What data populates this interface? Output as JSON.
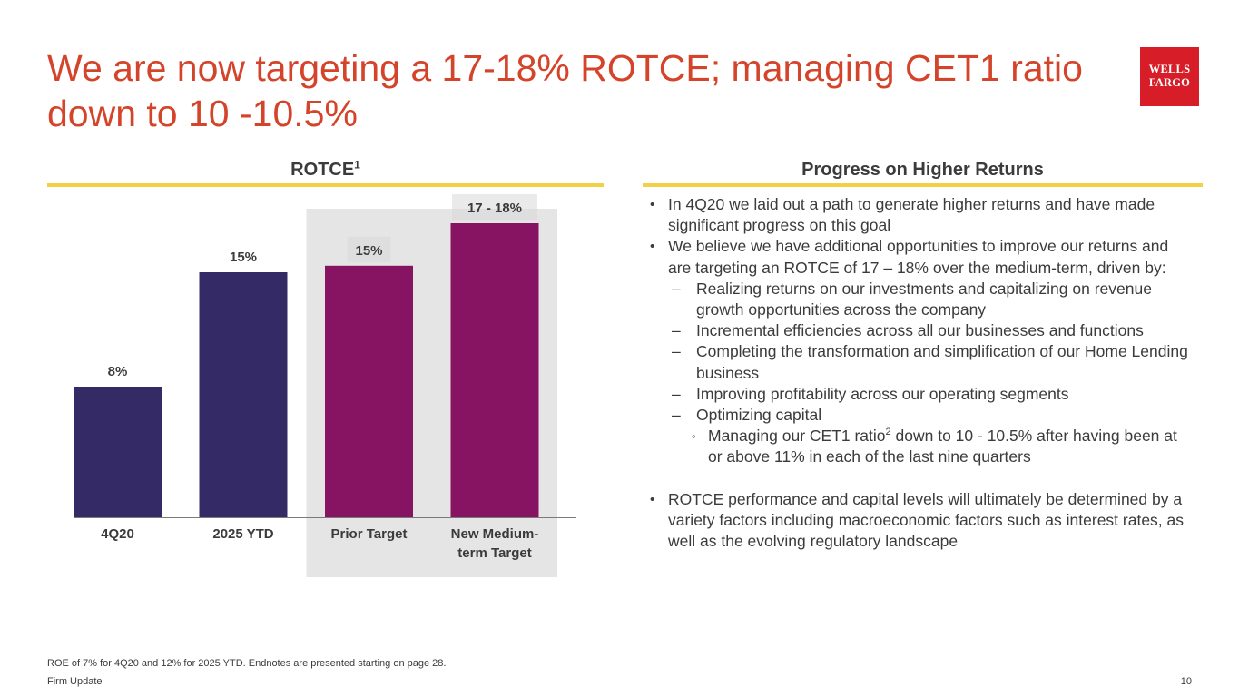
{
  "slide": {
    "title": "We are now targeting a 17-18% ROTCE; managing CET1 ratio down to 10 -10.5%",
    "logo_line1": "WELLS",
    "logo_line2": "FARGO",
    "footnote": "ROE of 7% for 4Q20 and 12% for 2025 YTD. Endnotes are presented starting on page 28.",
    "footer_left": "Firm Update",
    "page_number": "10"
  },
  "left_section": {
    "heading": "ROTCE",
    "heading_sup": "1"
  },
  "right_section": {
    "heading": "Progress on Higher Returns",
    "bullets": [
      {
        "level": 1,
        "marker": "•",
        "text": "In 4Q20 we laid out a path to generate higher returns and have made significant progress on this goal"
      },
      {
        "level": 1,
        "marker": "•",
        "text": "We believe we have additional opportunities to improve our returns and are targeting an ROTCE of 17 – 18% over the medium-term, driven by:"
      },
      {
        "level": 2,
        "marker": "–",
        "text": "Realizing returns on our investments and capitalizing on revenue growth opportunities across the company"
      },
      {
        "level": 2,
        "marker": "–",
        "text": "Incremental efficiencies across all our businesses and functions"
      },
      {
        "level": 2,
        "marker": "–",
        "text": "Completing the transformation and simplification of our Home Lending business"
      },
      {
        "level": 2,
        "marker": "–",
        "text": "Improving profitability across our operating segments"
      },
      {
        "level": 2,
        "marker": "–",
        "text": "Optimizing capital"
      },
      {
        "level": 3,
        "marker": "◦",
        "text_before": "Managing our CET1 ratio",
        "sup": "2",
        "text_after": " down to 10 - 10.5% after having been at or above 11% in each of the last nine quarters"
      },
      {
        "level": 1,
        "marker": "•",
        "text": "ROTCE performance and capital levels will ultimately be determined by a variety factors including macroeconomic factors such as interest rates, as well as the evolving regulatory landscape"
      }
    ]
  },
  "chart_data": {
    "type": "bar",
    "title": "ROTCE",
    "categories": [
      "4Q20",
      "2025 YTD",
      "Prior Target",
      "New Medium-term Target"
    ],
    "category_labels": [
      [
        "4Q20"
      ],
      [
        "2025 YTD"
      ],
      [
        "Prior Target"
      ],
      [
        "New Medium-",
        "term Target"
      ]
    ],
    "values": [
      8,
      15,
      15.4,
      18
    ],
    "data_labels": [
      "8%",
      "15%",
      "15%",
      "17 - 18%"
    ],
    "bar_colors": [
      "#332a66",
      "#332a66",
      "#861463",
      "#861463"
    ],
    "highlighted_categories": [
      "Prior Target",
      "New Medium-term Target"
    ],
    "highlight_color": "#e5e5e5",
    "ylim": [
      0,
      20
    ],
    "grid": false,
    "xlabel": "",
    "ylabel": ""
  }
}
